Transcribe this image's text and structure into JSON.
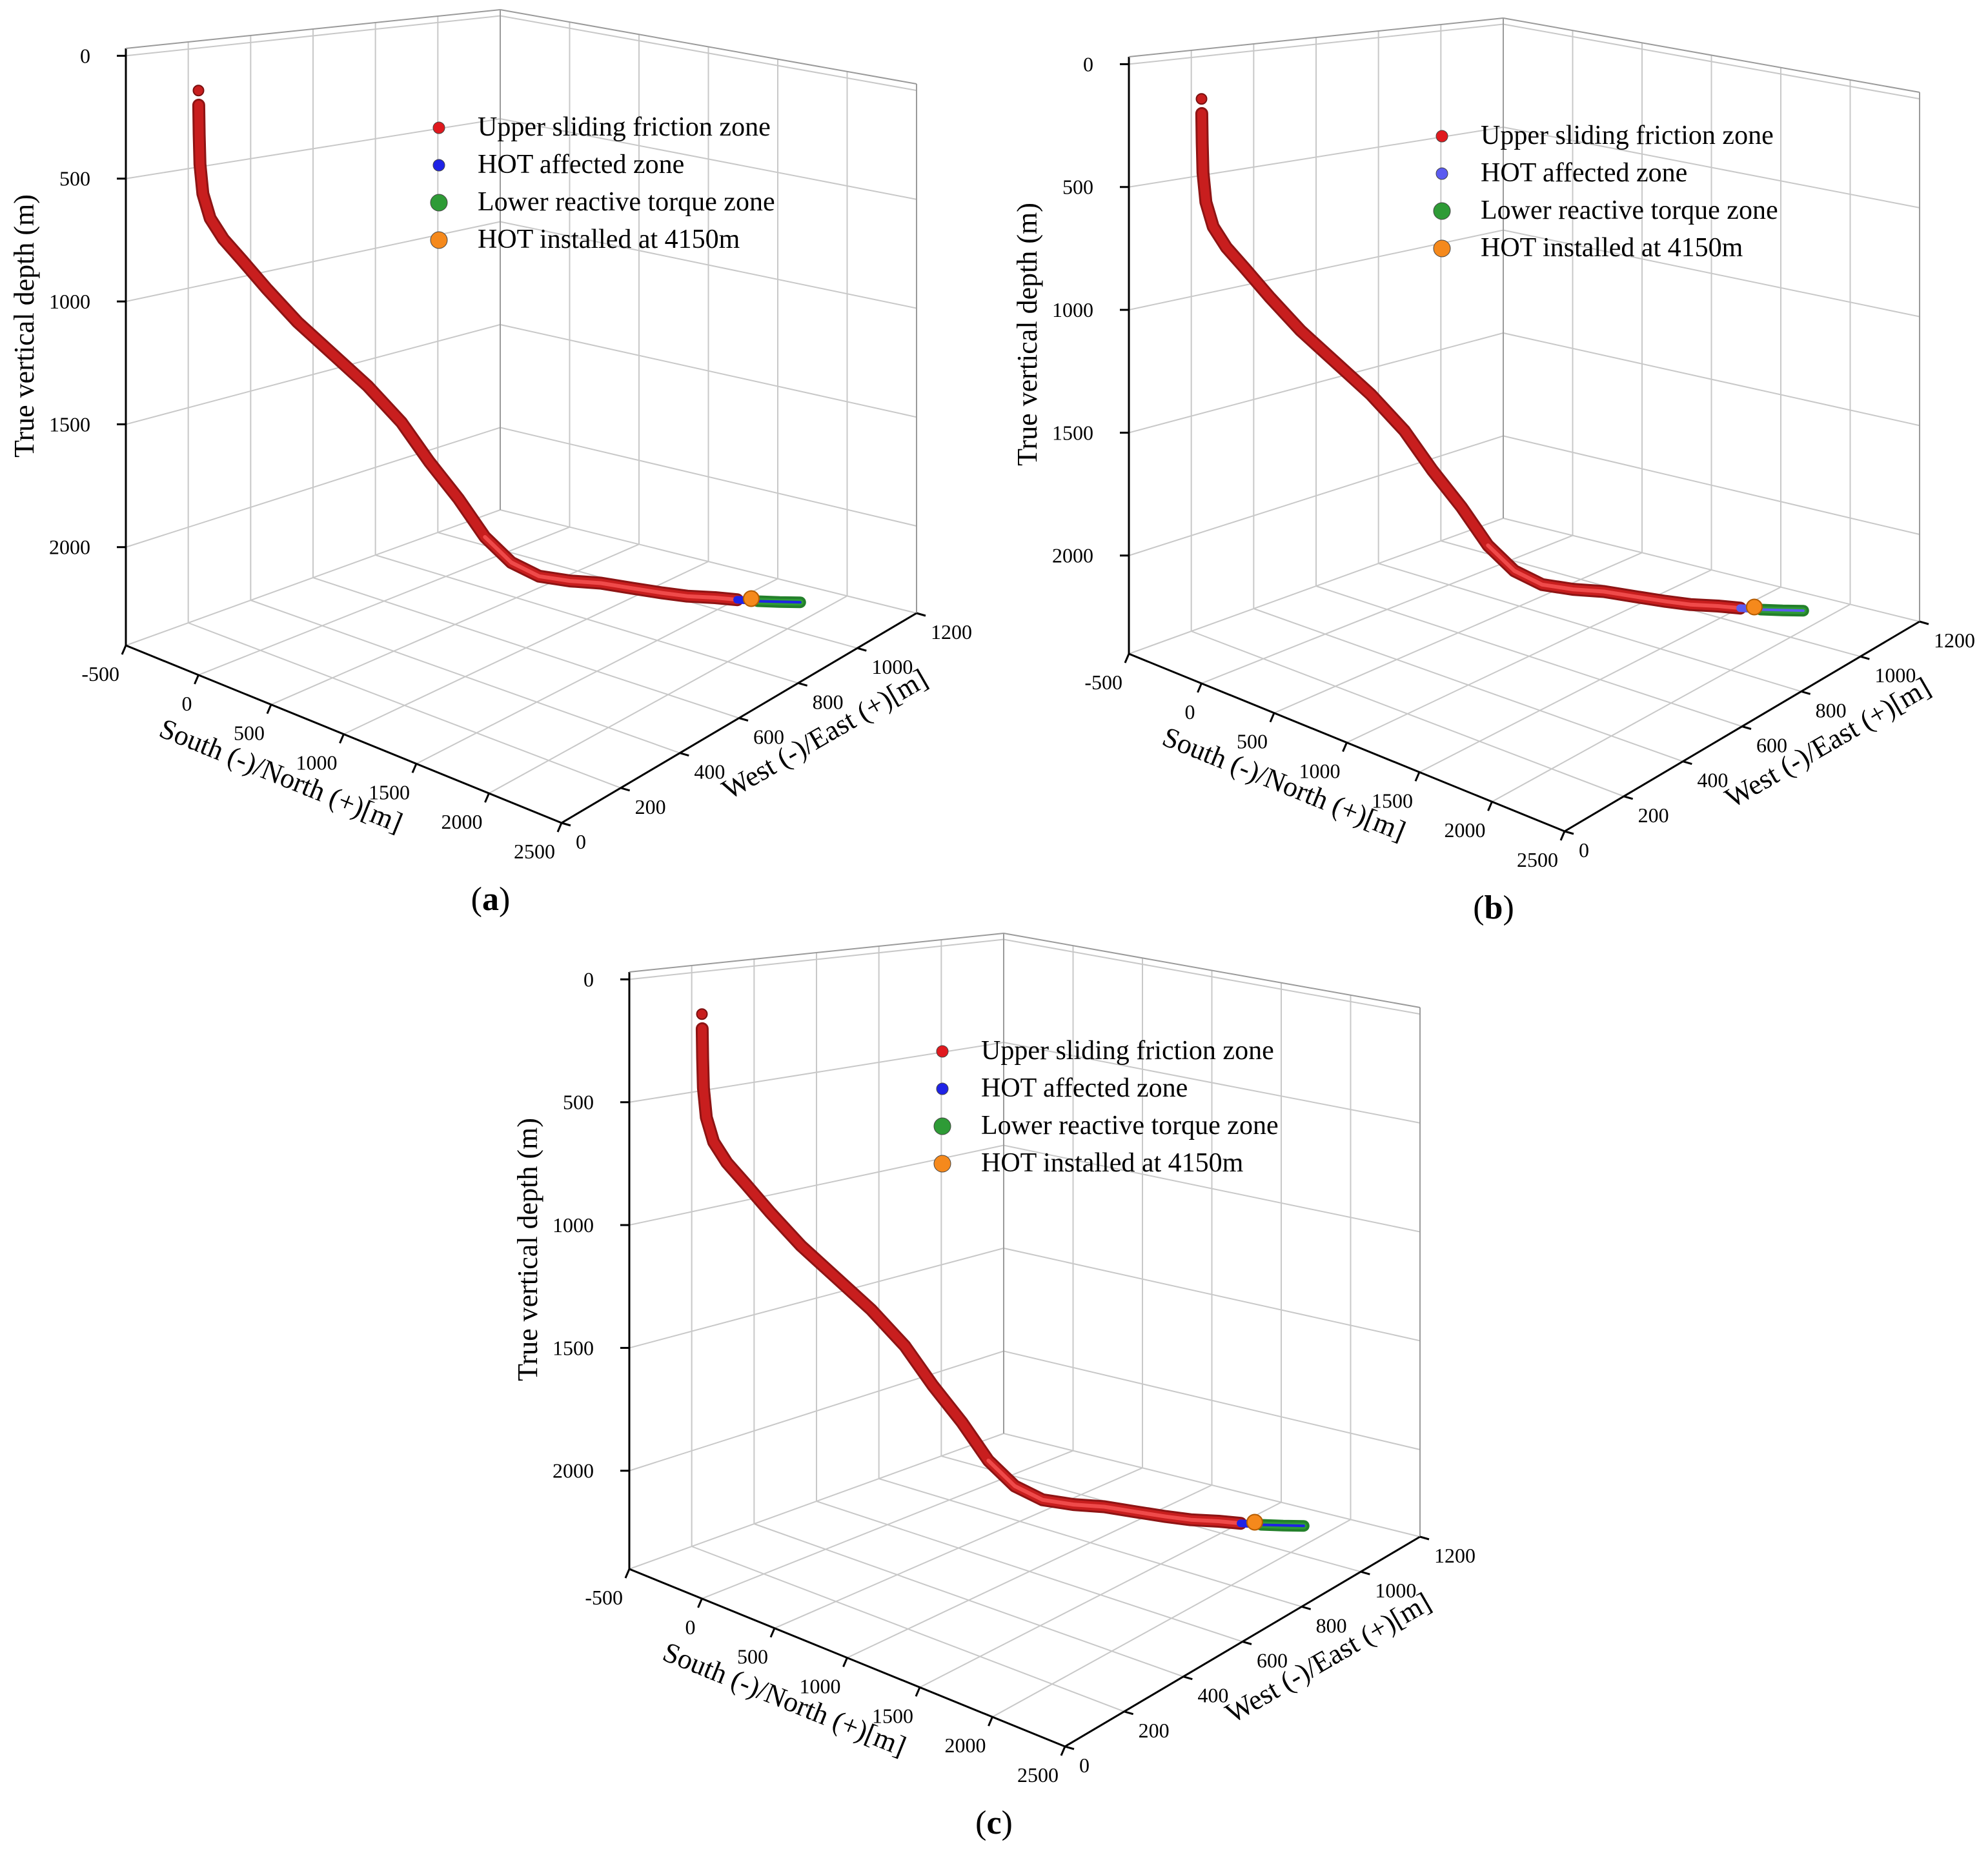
{
  "chart_data": [
    {
      "type": "line",
      "panel": "a",
      "label": "(a)",
      "label_letter": "a",
      "xlabel": "South (-)/North (+)[m]",
      "ylabel": "West (-)/East (+)[m]",
      "zlabel": "True vertical depth (m)",
      "xticks": [
        "-500",
        "0",
        "500",
        "1000",
        "1500",
        "2000",
        "2500"
      ],
      "yticks": [
        "0",
        "200",
        "400",
        "600",
        "800",
        "1000",
        "1200"
      ],
      "zticks": [
        "0",
        "500",
        "1000",
        "1500",
        "2000"
      ],
      "xlim": [
        -500,
        2500
      ],
      "ylim": [
        0,
        1200
      ],
      "zlim": [
        0,
        2400
      ],
      "grid": true,
      "legend_position": "top-right",
      "series": [
        {
          "name": "Upper sliding friction zone",
          "color": "#e0191e"
        },
        {
          "name": "HOT affected zone",
          "color": "#1f23e6"
        },
        {
          "name": "Lower reactive torque zone",
          "color": "#2e9b36"
        },
        {
          "name": "HOT installed at 4150m",
          "color": "#f5891c"
        }
      ]
    },
    {
      "type": "line",
      "panel": "b",
      "label": "(b)",
      "label_letter": "b",
      "xlabel": "South (-)/North (+)[m]",
      "ylabel": "West (-)/East (+)[m]",
      "zlabel": "True vertical depth (m)",
      "xticks": [
        "-500",
        "0",
        "500",
        "1000",
        "1500",
        "2000",
        "2500"
      ],
      "yticks": [
        "0",
        "200",
        "400",
        "600",
        "800",
        "1000",
        "1200"
      ],
      "zticks": [
        "0",
        "500",
        "1000",
        "1500",
        "2000"
      ],
      "xlim": [
        -500,
        2500
      ],
      "ylim": [
        0,
        1200
      ],
      "zlim": [
        0,
        2400
      ],
      "grid": true,
      "legend_position": "top-right",
      "series": [
        {
          "name": "Upper sliding friction zone",
          "color": "#e0191e"
        },
        {
          "name": "HOT affected zone",
          "color": "#5b5bf0"
        },
        {
          "name": "Lower reactive torque zone",
          "color": "#2e9b36"
        },
        {
          "name": "HOT installed at 4150m",
          "color": "#f5891c"
        }
      ]
    },
    {
      "type": "line",
      "panel": "c",
      "label": "(c)",
      "label_letter": "c",
      "xlabel": "South (-)/North (+)[m]",
      "ylabel": "West (-)/East (+)[m]",
      "zlabel": "True vertical depth (m)",
      "xticks": [
        "-500",
        "0",
        "500",
        "1000",
        "1500",
        "2000",
        "2500"
      ],
      "yticks": [
        "0",
        "200",
        "400",
        "600",
        "800",
        "1000",
        "1200"
      ],
      "zticks": [
        "0",
        "500",
        "1000",
        "1500",
        "2000"
      ],
      "xlim": [
        -500,
        2500
      ],
      "ylim": [
        0,
        1200
      ],
      "zlim": [
        0,
        2400
      ],
      "grid": true,
      "legend_position": "top-right",
      "series": [
        {
          "name": "Upper sliding friction zone",
          "color": "#e0191e"
        },
        {
          "name": "HOT affected zone",
          "color": "#1f23e6"
        },
        {
          "name": "Lower reactive torque zone",
          "color": "#2e9b36"
        },
        {
          "name": "HOT installed at 4150m",
          "color": "#f5891c"
        }
      ]
    }
  ]
}
